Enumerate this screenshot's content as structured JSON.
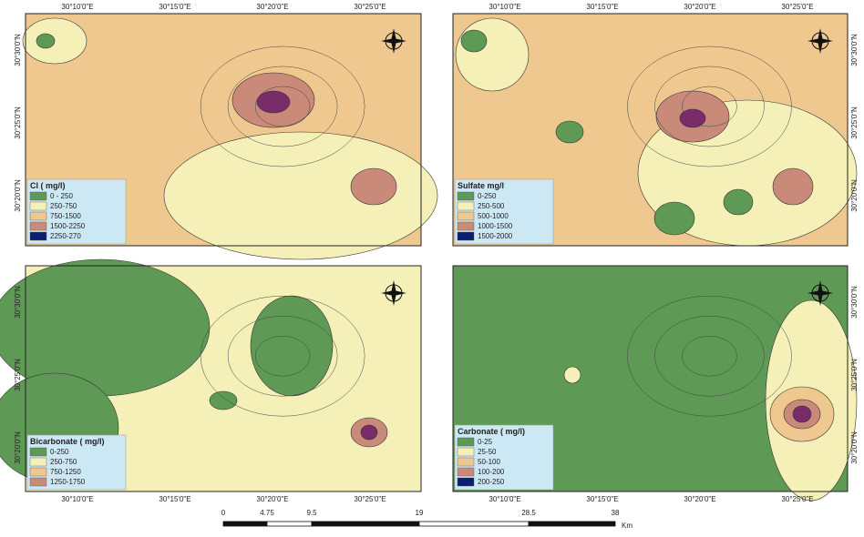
{
  "panels": [
    {
      "legend_title": "Cl ( mg/l)",
      "legend_items": [
        "0 - 250",
        "250-750",
        "750-1500",
        "1500-2250",
        "2250-270"
      ],
      "x_labels": [
        "30°10'0\"E",
        "30°15'0\"E",
        "30°20'0\"E",
        "30°25'0\"E"
      ],
      "y_labels": [
        "30°30'0\"N",
        "30°25'0\"N",
        "30°20'0\"N"
      ]
    },
    {
      "legend_title": "Sulfate mg/l",
      "legend_items": [
        "0-250",
        "250-500",
        "500-1000",
        "1000-1500",
        "1500-2000"
      ],
      "x_labels": [
        "30°10'0\"E",
        "30°15'0\"E",
        "30°20'0\"E",
        "30°25'0\"E"
      ],
      "y_labels": [
        "30°30'0\"N",
        "30°25'0\"N",
        "30°20'0\"N"
      ]
    },
    {
      "legend_title": "Bicarbonate ( mg/l)",
      "legend_items": [
        "0-250",
        "250-750",
        "750-1250",
        "1250-1750"
      ],
      "x_labels": [
        "30°10'0\"E",
        "30°15'0\"E",
        "30°20'0\"E",
        "30°25'0\"E"
      ],
      "y_labels": [
        "30°30'0\"N",
        "30°25'0\"N",
        "30°20'0\"N"
      ]
    },
    {
      "legend_title": "Carbonate ( mg/l)",
      "legend_items": [
        "0-25",
        "25-50",
        "50-100",
        "100-200",
        "200-250"
      ],
      "x_labels": [
        "30°10'0\"E",
        "30°15'0\"E",
        "30°20'0\"E",
        "30°25'0\"E"
      ],
      "y_labels": [
        "30°30'0\"N",
        "30°25'0\"N",
        "30°20'0\"N"
      ]
    }
  ],
  "scale_bar": {
    "labels": [
      "0",
      "4.75",
      "9.5",
      "19",
      "28.5",
      "38"
    ],
    "unit": "Km"
  }
}
